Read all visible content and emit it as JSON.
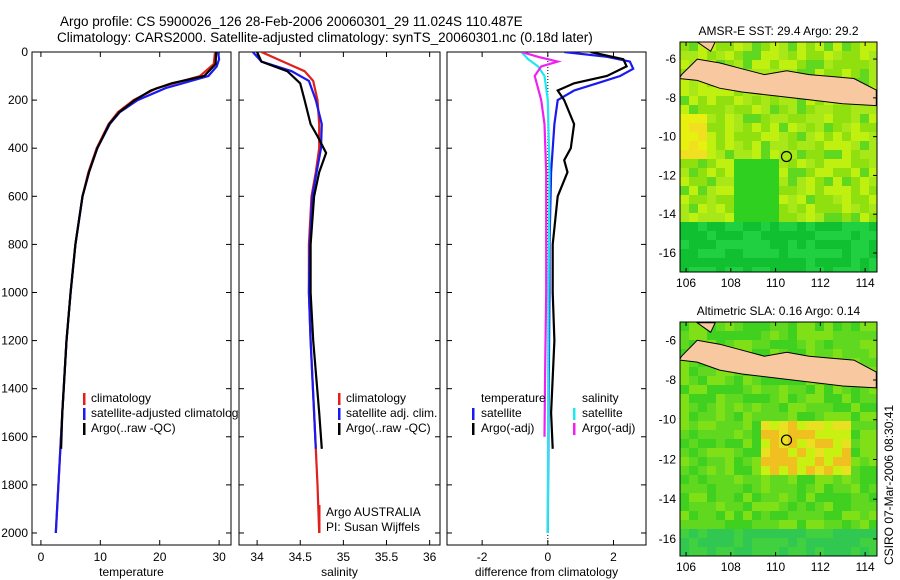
{
  "title": {
    "line1": "Argo profile: CS 5900026_126 28-Feb-2006 20060301_29 11.024S 110.487E",
    "line2": "Climatology: CARS2000. Satellite-adjusted climatology: synTS_20060301.nc (0.18d later)"
  },
  "side_label": "CSIRO 07-Mar-2006 08:30:41",
  "colors": {
    "climatology": "#e0201a",
    "satellite": "#1a1aee",
    "argo": "#000000",
    "sal_satellite": "#20e8f0",
    "sal_argo": "#f020f0",
    "land": "#f8c8a0"
  },
  "chart_data": [
    {
      "type": "line",
      "xlabel": "temperature",
      "ylabel": "",
      "xlim": [
        -1.5,
        32
      ],
      "ylim": [
        0,
        2050
      ],
      "xticks": [
        0,
        10,
        20,
        30
      ],
      "yticks": [
        0,
        200,
        400,
        600,
        800,
        1000,
        1200,
        1400,
        1600,
        1800,
        2000
      ],
      "legend": [
        "climatology",
        "satellite-adjusted climatology",
        "Argo(..raw -QC)"
      ],
      "series": [
        {
          "name": "climatology",
          "color": "#e0201a",
          "depth": [
            0,
            50,
            100,
            150,
            200,
            250,
            300,
            400,
            500,
            600,
            800,
            1000,
            1200,
            1500,
            2000
          ],
          "values": [
            29.3,
            29.1,
            26.8,
            19.5,
            15.6,
            13,
            11.4,
            9.4,
            8,
            7,
            5.8,
            5,
            4.3,
            3.6,
            2.5
          ]
        },
        {
          "name": "satellite-adjusted climatology",
          "color": "#1a1aee",
          "depth": [
            0,
            30,
            60,
            100,
            150,
            200,
            250,
            300,
            400,
            500,
            600,
            800,
            1000,
            1200,
            1500,
            2000
          ],
          "values": [
            29.8,
            30,
            29.6,
            28.2,
            21,
            16.3,
            13.3,
            11.6,
            9.5,
            8.1,
            7,
            5.8,
            5,
            4.3,
            3.6,
            2.5
          ]
        },
        {
          "name": "Argo(..raw -QC)",
          "color": "#000000",
          "depth": [
            0,
            50,
            100,
            130,
            160,
            200,
            250,
            300,
            400,
            500,
            600,
            800,
            1000,
            1200,
            1500,
            1650
          ],
          "values": [
            29.5,
            29.4,
            27.5,
            22,
            18.5,
            15.8,
            13.2,
            11.5,
            9.5,
            8.1,
            7,
            5.8,
            5,
            4.3,
            3.6,
            3.4
          ]
        }
      ]
    },
    {
      "type": "line",
      "xlabel": "salinity",
      "xlim": [
        33.79,
        36.12
      ],
      "ylim": [
        0,
        2050
      ],
      "xticks": [
        34,
        34.5,
        35,
        35.5,
        36
      ],
      "legend": [
        "climatology",
        "satellite adj. clim.",
        "Argo(..raw -QC)"
      ],
      "annotation": [
        "Argo AUSTRALIA",
        "PI: Susan Wijffels"
      ],
      "series": [
        {
          "name": "climatology",
          "color": "#e0201a",
          "depth": [
            0,
            40,
            80,
            120,
            200,
            300,
            400,
            500,
            600,
            800,
            1000,
            1200,
            1500,
            1800,
            2000
          ],
          "values": [
            34.05,
            34.3,
            34.55,
            34.65,
            34.7,
            34.72,
            34.72,
            34.68,
            34.63,
            34.6,
            34.6,
            34.62,
            34.66,
            34.7,
            34.72
          ]
        },
        {
          "name": "satellite adj. clim.",
          "color": "#1a1aee",
          "depth": [
            0,
            40,
            80,
            120,
            200,
            300,
            400,
            500,
            600,
            800,
            1000,
            1200,
            1500,
            1650
          ],
          "values": [
            33.95,
            34.05,
            34.4,
            34.6,
            34.68,
            34.75,
            34.74,
            34.69,
            34.64,
            34.61,
            34.6,
            34.62,
            34.66,
            34.68
          ]
        },
        {
          "name": "Argo(..raw -QC)",
          "color": "#000000",
          "depth": [
            0,
            40,
            80,
            130,
            200,
            300,
            350,
            420,
            500,
            600,
            800,
            1000,
            1200,
            1500,
            1650
          ],
          "values": [
            34.0,
            34.05,
            34.35,
            34.5,
            34.55,
            34.62,
            34.7,
            34.8,
            34.72,
            34.66,
            34.62,
            34.62,
            34.65,
            34.72,
            34.75
          ]
        }
      ]
    },
    {
      "type": "line",
      "xlabel": "difference from climatology",
      "xlim": [
        -3.07,
        2.99
      ],
      "ylim": [
        0,
        2050
      ],
      "xticks": [
        -2,
        0,
        2
      ],
      "legend": {
        "temperature": [
          "satellite",
          "Argo(-adj)"
        ],
        "salinity": [
          "satellite",
          "Argo(-adj)"
        ],
        "temperature_title": "temperature",
        "salinity_title": "salinity"
      },
      "series": [
        {
          "name": "temperature satellite",
          "color": "#1a1aee",
          "depth": [
            0,
            20,
            40,
            70,
            100,
            130,
            160,
            200,
            300,
            500,
            800,
            1000,
            1500,
            2000
          ],
          "values": [
            0.5,
            1.8,
            2.5,
            2.6,
            2.2,
            1.5,
            0.8,
            0.3,
            0.2,
            0.1,
            0.05,
            0.05,
            0.02,
            0
          ]
        },
        {
          "name": "temperature Argo(-adj)",
          "color": "#000000",
          "depth": [
            0,
            30,
            60,
            100,
            130,
            160,
            200,
            300,
            400,
            450,
            500,
            600,
            800,
            1000,
            1200,
            1500,
            1650
          ],
          "values": [
            1.3,
            2.3,
            2.4,
            1.8,
            0.8,
            0.3,
            0.5,
            0.8,
            0.7,
            0.5,
            0.6,
            0.3,
            0.15,
            0.15,
            0.2,
            0.1,
            0.15
          ]
        },
        {
          "name": "salinity satellite",
          "color": "#20e8f0",
          "depth": [
            0,
            30,
            60,
            100,
            200,
            500,
            1000,
            2000
          ],
          "values": [
            -0.8,
            -0.6,
            -0.3,
            -0.1,
            0,
            0.05,
            0.02,
            0
          ]
        },
        {
          "name": "salinity Argo(-adj)",
          "color": "#f020f0",
          "depth": [
            0,
            20,
            40,
            60,
            100,
            150,
            200,
            300,
            500,
            800,
            1000,
            1300,
            1600
          ],
          "values": [
            -0.8,
            -0.3,
            0.3,
            -0.2,
            -0.4,
            -0.3,
            -0.2,
            -0.1,
            -0.05,
            -0.05,
            -0.05,
            -0.08,
            -0.1
          ]
        }
      ]
    },
    {
      "type": "heatmap",
      "title": "AMSR-E SST: 29.4  Argo: 29.2",
      "xlim": [
        105.73,
        114.53
      ],
      "ylim": [
        -16.98,
        -5.12
      ],
      "xticks": [
        106,
        108,
        110,
        112,
        114
      ],
      "yticks": [
        -6,
        -8,
        -10,
        -12,
        -14,
        -16
      ],
      "argo_position": [
        110.487,
        -11.024
      ]
    },
    {
      "type": "heatmap",
      "title": "Altimetric SLA: 0.16  Argo: 0.14",
      "xlim": [
        105.73,
        114.53
      ],
      "ylim": [
        -16.86,
        -5.08
      ],
      "xticks": [
        106,
        108,
        110,
        112,
        114
      ],
      "yticks": [
        -6,
        -8,
        -10,
        -12,
        -14,
        -16
      ],
      "argo_position": [
        110.487,
        -11.024
      ]
    }
  ]
}
